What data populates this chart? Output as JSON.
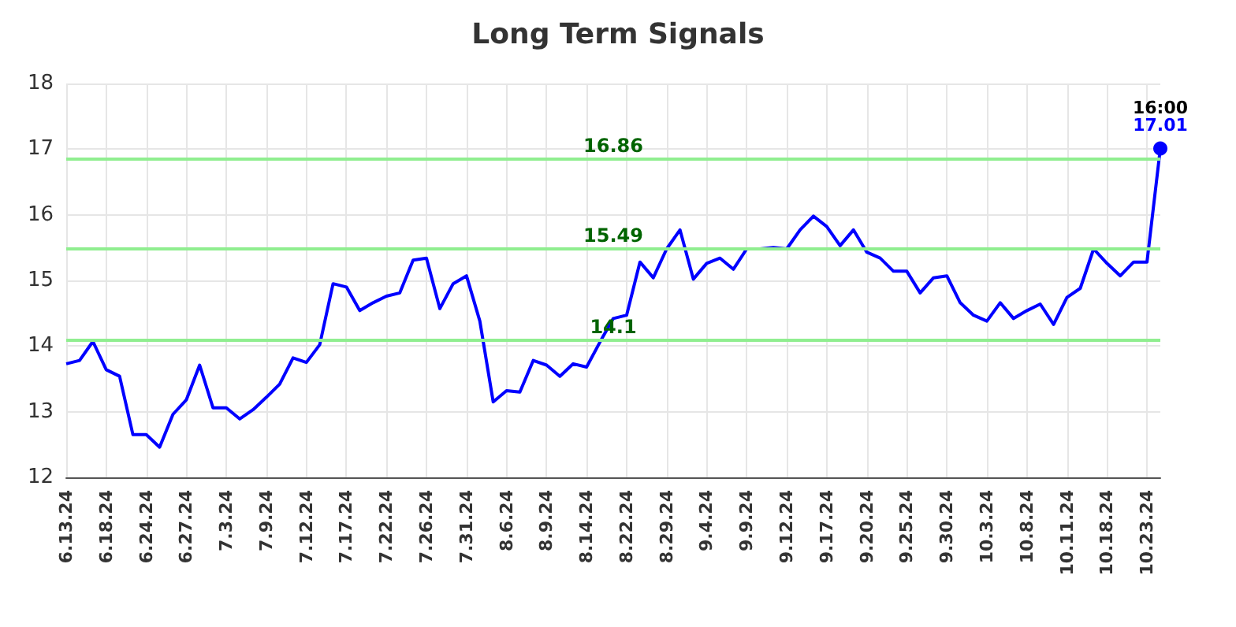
{
  "chart_data": {
    "type": "line",
    "title": "Long Term Signals",
    "categories": [
      "6.13.24",
      null,
      null,
      "6.18.24",
      null,
      null,
      "6.24.24",
      null,
      null,
      "6.27.24",
      null,
      null,
      "7.3.24",
      null,
      null,
      "7.9.24",
      null,
      null,
      "7.12.24",
      null,
      null,
      "7.17.24",
      null,
      null,
      "7.22.24",
      null,
      null,
      "7.26.24",
      null,
      null,
      "7.31.24",
      null,
      null,
      "8.6.24",
      null,
      null,
      "8.9.24",
      null,
      null,
      "8.14.24",
      null,
      null,
      "8.22.24",
      null,
      null,
      "8.29.24",
      null,
      null,
      "9.4.24",
      null,
      null,
      "9.9.24",
      null,
      null,
      "9.12.24",
      null,
      null,
      "9.17.24",
      null,
      null,
      "9.20.24",
      null,
      null,
      "9.25.24",
      null,
      null,
      "9.30.24",
      null,
      null,
      "10.3.24",
      null,
      null,
      "10.8.24",
      null,
      null,
      "10.11.24",
      null,
      null,
      "10.18.24",
      null,
      null,
      "10.23.24",
      null
    ],
    "series": [
      {
        "color": "#0000ff",
        "values": [
          13.73,
          13.78,
          14.07,
          13.64,
          13.54,
          12.65,
          12.65,
          12.46,
          12.96,
          13.18,
          13.71,
          13.06,
          13.06,
          12.89,
          13.03,
          13.22,
          13.42,
          13.82,
          13.75,
          14.02,
          14.95,
          14.9,
          14.54,
          14.66,
          14.76,
          14.81,
          15.31,
          15.34,
          14.57,
          14.95,
          15.07,
          14.38,
          13.15,
          13.32,
          13.3,
          13.78,
          13.71,
          13.54,
          13.73,
          13.68,
          14.06,
          14.42,
          14.47,
          15.28,
          15.04,
          15.48,
          15.77,
          15.02,
          15.26,
          15.34,
          15.17,
          15.48,
          15.48,
          15.5,
          15.48,
          15.77,
          15.98,
          15.82,
          15.53,
          15.77,
          15.43,
          15.34,
          15.14,
          15.14,
          14.81,
          15.04,
          15.07,
          14.66,
          14.47,
          14.38,
          14.66,
          14.42,
          14.54,
          14.64,
          14.33,
          14.74,
          14.88,
          15.48,
          15.26,
          15.07,
          15.28,
          15.28,
          17.01
        ],
        "value_labels": [
          null,
          null,
          null,
          null,
          null,
          null,
          null,
          null,
          null,
          null,
          null,
          null,
          null,
          null,
          null,
          null,
          null,
          null,
          null,
          null,
          null,
          null,
          null,
          null,
          null,
          null,
          null,
          null,
          null,
          null,
          null,
          null,
          null,
          null,
          null,
          null,
          null,
          null,
          null,
          null,
          null,
          null,
          null,
          null,
          null,
          null,
          null,
          null,
          null,
          null,
          null,
          null,
          null,
          null,
          null,
          null,
          null,
          null,
          null,
          null,
          null,
          null,
          null,
          null,
          null,
          null,
          null,
          null,
          null,
          null,
          null,
          null,
          null,
          null,
          null,
          null,
          null,
          null,
          null,
          null,
          null,
          null,
          "17.01"
        ]
      }
    ],
    "ylim": [
      12,
      18
    ],
    "yticks": [
      12,
      13,
      14,
      15,
      16,
      17,
      18
    ],
    "grid": true,
    "line_style": "solid",
    "ref_lines": [
      {
        "axis": "y",
        "value": 16.86,
        "label": "16.86",
        "color": "#90ee90"
      },
      {
        "axis": "y",
        "value": 15.49,
        "label": "15.49",
        "color": "#90ee90"
      },
      {
        "axis": "y",
        "value": 14.1,
        "label": "14.1",
        "color": "#90ee90"
      }
    ],
    "annotations": [
      "16:00"
    ]
  }
}
